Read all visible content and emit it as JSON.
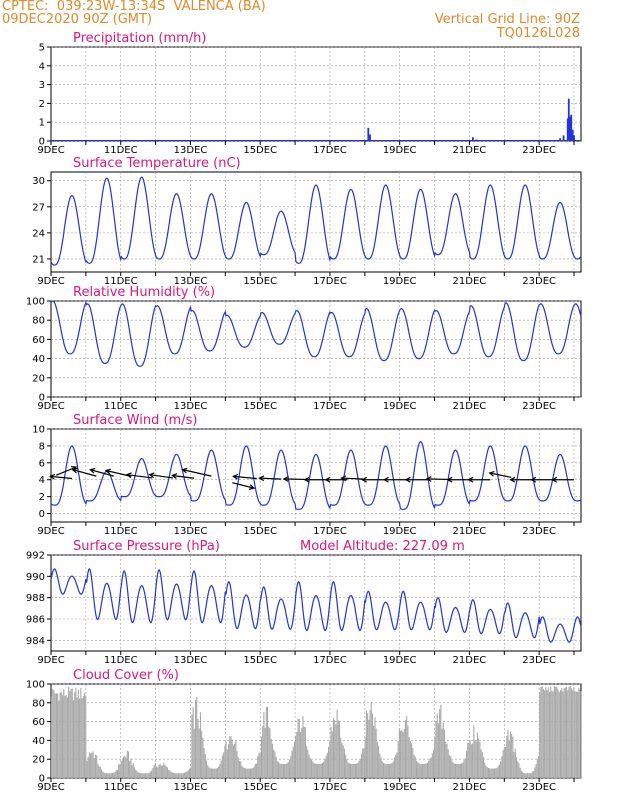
{
  "header": {
    "station": "CPTEC:  039:23W-13:34S  VALENCA (BA)",
    "date": "09DEC2020 90Z (GMT)",
    "vertical_grid": "Vertical Grid Line: 90Z",
    "code": "TQ0126L028"
  },
  "colors": {
    "title": "#e0157a",
    "header": "#e0892a",
    "line": "#2233dd",
    "cloud": "#a8a8a8",
    "grid": "#9a9a9a"
  },
  "x_tick_labels": [
    "9DEC",
    "11DEC",
    "13DEC",
    "15DEC",
    "17DEC",
    "19DEC",
    "21DEC",
    "23DEC"
  ],
  "chart_data": [
    {
      "type": "bar",
      "title": "Precipitation (mm/h)",
      "unit": "mm/h",
      "ylim": [
        0,
        5
      ],
      "yticks": [
        0,
        1,
        2,
        3,
        4,
        5
      ],
      "x_range_days": [
        9,
        24.2
      ],
      "series": [
        {
          "values": [
            {
              "x": 10.6,
              "y": 0.05
            },
            {
              "x": 12.3,
              "y": 0.05
            },
            {
              "x": 14.0,
              "y": 0.05
            },
            {
              "x": 18.1,
              "y": 0.7
            },
            {
              "x": 18.15,
              "y": 0.35
            },
            {
              "x": 21.1,
              "y": 0.2
            },
            {
              "x": 21.2,
              "y": 0.08
            },
            {
              "x": 23.6,
              "y": 0.15
            },
            {
              "x": 23.7,
              "y": 0.3
            },
            {
              "x": 23.82,
              "y": 1.2
            },
            {
              "x": 23.85,
              "y": 2.25
            },
            {
              "x": 23.88,
              "y": 1.3
            },
            {
              "x": 23.92,
              "y": 1.4
            },
            {
              "x": 23.96,
              "y": 0.6
            },
            {
              "x": 24.0,
              "y": 0.3
            }
          ]
        }
      ]
    },
    {
      "type": "line",
      "title": "Surface Temperature (nC)",
      "unit": "°C",
      "ylim": [
        19.5,
        31
      ],
      "yticks": [
        21,
        24,
        27,
        30
      ],
      "x_range_days": [
        9,
        24.2
      ],
      "daily_extremes": [
        {
          "day": 9,
          "min": 20.3,
          "max": 28.3
        },
        {
          "day": 10,
          "min": 20.5,
          "max": 30.3
        },
        {
          "day": 11,
          "min": 21.0,
          "max": 30.4
        },
        {
          "day": 12,
          "min": 21.0,
          "max": 28.5
        },
        {
          "day": 13,
          "min": 21.0,
          "max": 28.5
        },
        {
          "day": 14,
          "min": 21.0,
          "max": 27.5
        },
        {
          "day": 15,
          "min": 21.5,
          "max": 26.5
        },
        {
          "day": 16,
          "min": 20.5,
          "max": 29.5
        },
        {
          "day": 17,
          "min": 21.0,
          "max": 29.0
        },
        {
          "day": 18,
          "min": 21.0,
          "max": 29.5
        },
        {
          "day": 19,
          "min": 21.0,
          "max": 29.0
        },
        {
          "day": 20,
          "min": 21.5,
          "max": 28.5
        },
        {
          "day": 21,
          "min": 21.0,
          "max": 29.5
        },
        {
          "day": 22,
          "min": 21.0,
          "max": 29.5
        },
        {
          "day": 23,
          "min": 21.0,
          "max": 27.5
        }
      ]
    },
    {
      "type": "line",
      "title": "Relative Humidity (%)",
      "unit": "%",
      "ylim": [
        0,
        100
      ],
      "yticks": [
        0,
        20,
        40,
        60,
        80,
        100
      ],
      "x_range_days": [
        9,
        24.2
      ],
      "daily_extremes": [
        {
          "day": 9,
          "min": 45,
          "max": 100
        },
        {
          "day": 10,
          "min": 35,
          "max": 97
        },
        {
          "day": 11,
          "min": 32,
          "max": 97
        },
        {
          "day": 12,
          "min": 45,
          "max": 95
        },
        {
          "day": 13,
          "min": 48,
          "max": 90
        },
        {
          "day": 14,
          "min": 52,
          "max": 85
        },
        {
          "day": 15,
          "min": 55,
          "max": 88
        },
        {
          "day": 16,
          "min": 42,
          "max": 90
        },
        {
          "day": 17,
          "min": 42,
          "max": 88
        },
        {
          "day": 18,
          "min": 38,
          "max": 92
        },
        {
          "day": 19,
          "min": 40,
          "max": 92
        },
        {
          "day": 20,
          "min": 45,
          "max": 90
        },
        {
          "day": 21,
          "min": 42,
          "max": 95
        },
        {
          "day": 22,
          "min": 38,
          "max": 98
        },
        {
          "day": 23,
          "min": 45,
          "max": 97
        }
      ]
    },
    {
      "type": "line",
      "title": "Surface Wind (m/s)",
      "unit": "m/s",
      "ylim": [
        -1,
        10
      ],
      "yticks": [
        0,
        2,
        4,
        6,
        8,
        10
      ],
      "x_range_days": [
        9,
        24.2
      ],
      "daily_extremes": [
        {
          "day": 9,
          "min": 1.0,
          "max": 8.0
        },
        {
          "day": 10,
          "min": 1.5,
          "max": 5.0
        },
        {
          "day": 11,
          "min": 2.0,
          "max": 6.5
        },
        {
          "day": 12,
          "min": 2.0,
          "max": 7.0
        },
        {
          "day": 13,
          "min": 1.5,
          "max": 7.5
        },
        {
          "day": 14,
          "min": 1.0,
          "max": 8.0
        },
        {
          "day": 15,
          "min": 1.0,
          "max": 7.5
        },
        {
          "day": 16,
          "min": 0.5,
          "max": 7.0
        },
        {
          "day": 17,
          "min": 1.0,
          "max": 7.5
        },
        {
          "day": 18,
          "min": 1.0,
          "max": 8.0
        },
        {
          "day": 19,
          "min": 0.5,
          "max": 8.5
        },
        {
          "day": 20,
          "min": 1.0,
          "max": 7.5
        },
        {
          "day": 21,
          "min": 1.5,
          "max": 8.0
        },
        {
          "day": 22,
          "min": 1.5,
          "max": 8.0
        },
        {
          "day": 23,
          "min": 1.5,
          "max": 7.0
        }
      ],
      "wind_vectors": [
        {
          "x": 9.15,
          "u": 2.2,
          "v": 1.5
        },
        {
          "x": 9.6,
          "u": -2.4,
          "v": 0.4
        },
        {
          "x": 10.3,
          "u": -2.6,
          "v": 1.2
        },
        {
          "x": 10.8,
          "u": -2.6,
          "v": 1.2
        },
        {
          "x": 11.3,
          "u": -2.8,
          "v": 1.1
        },
        {
          "x": 11.9,
          "u": -2.8,
          "v": 0.6
        },
        {
          "x": 12.5,
          "u": -2.6,
          "v": 0.6
        },
        {
          "x": 13.1,
          "u": -2.4,
          "v": 0.5
        },
        {
          "x": 13.6,
          "u": -3.2,
          "v": 1.2
        },
        {
          "x": 14.2,
          "u": 2.4,
          "v": -1.0
        },
        {
          "x": 14.9,
          "u": -2.6,
          "v": 0.4
        },
        {
          "x": 15.6,
          "u": -2.4,
          "v": 0.2
        },
        {
          "x": 16.3,
          "u": -2.4,
          "v": 0.1
        },
        {
          "x": 16.9,
          "u": -2.4,
          "v": 0.0
        },
        {
          "x": 17.5,
          "u": -2.4,
          "v": 0.0
        },
        {
          "x": 18.0,
          "u": -2.6,
          "v": 0.2
        },
        {
          "x": 18.6,
          "u": -2.6,
          "v": 0.0
        },
        {
          "x": 19.2,
          "u": -2.5,
          "v": 0.0
        },
        {
          "x": 19.8,
          "u": -2.4,
          "v": 0.0
        },
        {
          "x": 20.4,
          "u": -2.4,
          "v": 0.1
        },
        {
          "x": 21.0,
          "u": -2.4,
          "v": 0.0
        },
        {
          "x": 21.6,
          "u": -2.4,
          "v": 0.0
        },
        {
          "x": 22.2,
          "u": -2.4,
          "v": 0.8
        },
        {
          "x": 22.8,
          "u": -2.4,
          "v": 0.0
        },
        {
          "x": 23.4,
          "u": -2.4,
          "v": 0.0
        },
        {
          "x": 24.0,
          "u": -2.4,
          "v": 0.0
        }
      ]
    },
    {
      "type": "line",
      "title": "Surface Pressure (hPa)",
      "subtitle": "Model Altitude: 227.09  m",
      "unit": "hPa",
      "ylim": [
        983,
        992
      ],
      "yticks": [
        984,
        986,
        988,
        990,
        992
      ],
      "x_range_days": [
        9,
        24.2
      ],
      "daily_extremes": [
        {
          "day": 9,
          "min": 988.0,
          "max": 990.7
        },
        {
          "day": 10,
          "min": 985.3,
          "max": 990.7
        },
        {
          "day": 11,
          "min": 985.0,
          "max": 990.5
        },
        {
          "day": 12,
          "min": 985.3,
          "max": 990.6
        },
        {
          "day": 13,
          "min": 985.0,
          "max": 990.5
        },
        {
          "day": 14,
          "min": 984.5,
          "max": 989.5
        },
        {
          "day": 15,
          "min": 984.5,
          "max": 989.0
        },
        {
          "day": 16,
          "min": 984.3,
          "max": 989.5
        },
        {
          "day": 17,
          "min": 984.3,
          "max": 989.5
        },
        {
          "day": 18,
          "min": 984.5,
          "max": 988.6
        },
        {
          "day": 19,
          "min": 984.5,
          "max": 988.6
        },
        {
          "day": 20,
          "min": 984.3,
          "max": 988.0
        },
        {
          "day": 21,
          "min": 984.2,
          "max": 987.8
        },
        {
          "day": 22,
          "min": 983.8,
          "max": 987.5
        },
        {
          "day": 23,
          "min": 983.5,
          "max": 986.2
        }
      ]
    },
    {
      "type": "area",
      "title": "Cloud Cover (%)",
      "unit": "%",
      "ylim": [
        0,
        100
      ],
      "yticks": [
        0,
        20,
        40,
        60,
        80,
        100
      ],
      "x_range_days": [
        9,
        24.2
      ],
      "daily_profile": [
        {
          "day": 9,
          "peak": 97,
          "base": 60
        },
        {
          "day": 10,
          "peak": 35,
          "base": 5
        },
        {
          "day": 11,
          "peak": 30,
          "base": 5
        },
        {
          "day": 12,
          "peak": 18,
          "base": 5
        },
        {
          "day": 13,
          "peak": 90,
          "base": 10
        },
        {
          "day": 14,
          "peak": 55,
          "base": 10
        },
        {
          "day": 15,
          "peak": 80,
          "base": 15
        },
        {
          "day": 16,
          "peak": 72,
          "base": 15
        },
        {
          "day": 17,
          "peak": 80,
          "base": 15
        },
        {
          "day": 18,
          "peak": 92,
          "base": 15
        },
        {
          "day": 19,
          "peak": 70,
          "base": 15
        },
        {
          "day": 20,
          "peak": 80,
          "base": 15
        },
        {
          "day": 21,
          "peak": 58,
          "base": 10
        },
        {
          "day": 22,
          "peak": 55,
          "base": 5
        },
        {
          "day": 23,
          "peak": 98,
          "base": 80
        }
      ]
    }
  ]
}
